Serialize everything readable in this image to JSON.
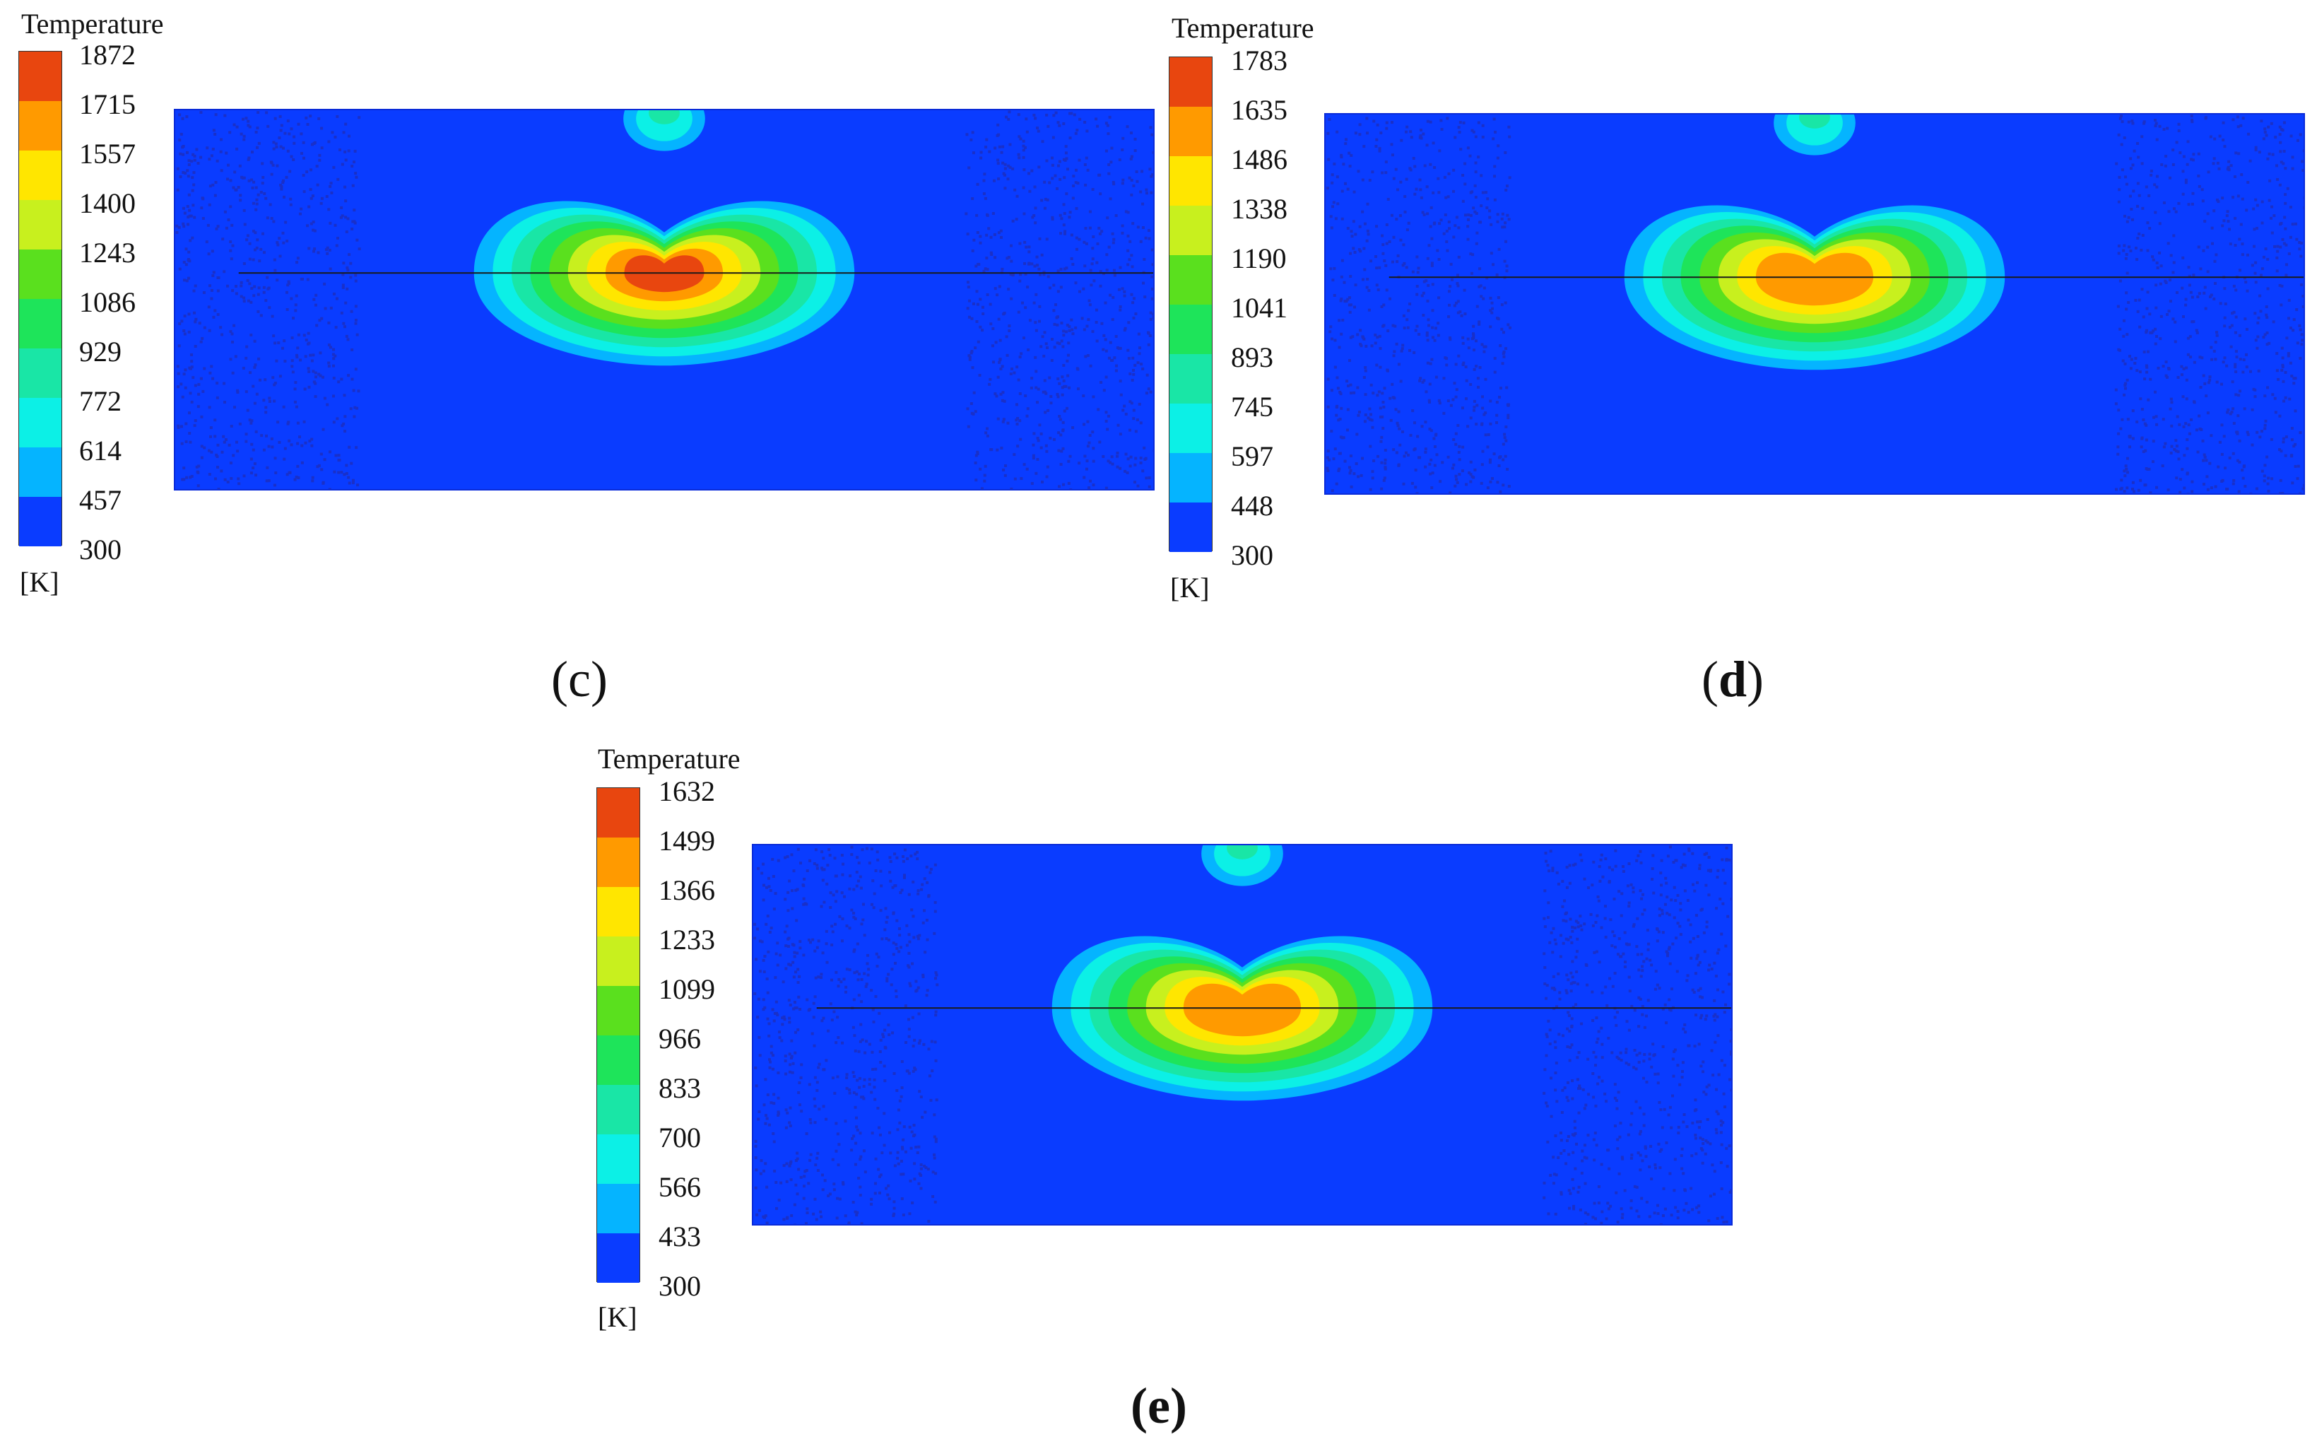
{
  "palette": [
    "#e8460f",
    "#ff9a00",
    "#ffe600",
    "#c8f01e",
    "#5ae01e",
    "#1ee45a",
    "#19e6a6",
    "#0cf0e6",
    "#05b4ff",
    "#0a3cff"
  ],
  "panels": [
    {
      "legend_title": "Temperature",
      "ticks": [
        "1872",
        "1715",
        "1557",
        "1400",
        "1243",
        "1086",
        "929",
        "772",
        "614",
        "457",
        "300"
      ],
      "unit": "[K]",
      "caption_open": "(",
      "caption_letter": "c",
      "caption_close": ")",
      "peak_level": 0
    },
    {
      "legend_title": "Temperature",
      "ticks": [
        "1783",
        "1635",
        "1486",
        "1338",
        "1190",
        "1041",
        "893",
        "745",
        "597",
        "448",
        "300"
      ],
      "unit": "[K]",
      "caption_open": "(",
      "caption_letter": "d",
      "caption_close": ")",
      "peak_level": 1
    },
    {
      "legend_title": "Temperature",
      "ticks": [
        "1632",
        "1499",
        "1366",
        "1233",
        "1099",
        "966",
        "833",
        "700",
        "566",
        "433",
        "300"
      ],
      "unit": "[K]",
      "caption_open": "(",
      "caption_letter": "e",
      "caption_close": ")",
      "peak_level": 1
    }
  ]
}
